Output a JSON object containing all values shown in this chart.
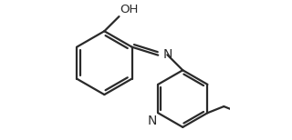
{
  "background_color": "#ffffff",
  "line_color": "#2a2a2a",
  "line_width": 1.6,
  "oh_label": "OH",
  "n_imine_label": "N",
  "n_pyr_label": "N",
  "font_size": 9.5,
  "fig_width": 3.2,
  "fig_height": 1.54,
  "dpi": 100
}
